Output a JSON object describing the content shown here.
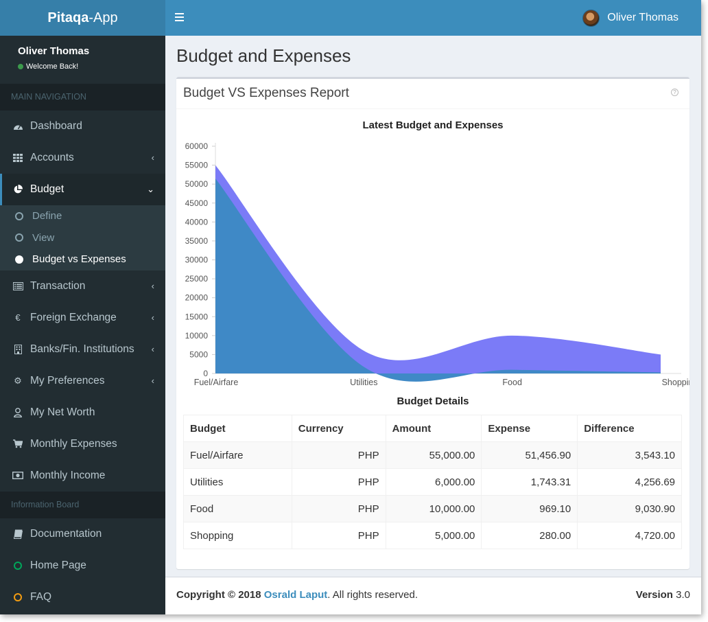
{
  "app": {
    "logo_bold": "Pitaqa",
    "logo_rest": "-App"
  },
  "header": {
    "user_name": "Oliver Thomas"
  },
  "sidebar": {
    "user_name": "Oliver Thomas",
    "status_text": "Welcome Back!",
    "main_nav_header": "MAIN NAVIGATION",
    "items": [
      {
        "label": "Dashboard"
      },
      {
        "label": "Accounts"
      },
      {
        "label": "Budget"
      },
      {
        "label": "Transaction"
      },
      {
        "label": "Foreign Exchange"
      },
      {
        "label": "Banks/Fin. Institutions"
      },
      {
        "label": "My Preferences"
      },
      {
        "label": "My Net Worth"
      },
      {
        "label": "Monthly Expenses"
      },
      {
        "label": "Monthly Income"
      }
    ],
    "budget_sub": [
      {
        "label": "Define"
      },
      {
        "label": "View"
      },
      {
        "label": "Budget vs Expenses"
      }
    ],
    "info_header": "Information Board",
    "info_items": [
      {
        "label": "Documentation"
      },
      {
        "label": "Home Page",
        "color": "#00a65a"
      },
      {
        "label": "FAQ",
        "color": "#f39c12"
      }
    ]
  },
  "page": {
    "title": "Budget and Expenses"
  },
  "report": {
    "box_title": "Budget VS Expenses Report",
    "table_title": "Budget Details",
    "columns": [
      "Budget",
      "Currency",
      "Amount",
      "Expense",
      "Difference"
    ],
    "rows": [
      [
        "Fuel/Airfare",
        "PHP",
        "55,000.00",
        "51,456.90",
        "3,543.10"
      ],
      [
        "Utilities",
        "PHP",
        "6,000.00",
        "1,743.31",
        "4,256.69"
      ],
      [
        "Food",
        "PHP",
        "10,000.00",
        "969.10",
        "9,030.90"
      ],
      [
        "Shopping",
        "PHP",
        "5,000.00",
        "280.00",
        "4,720.00"
      ]
    ]
  },
  "chart_data": {
    "type": "area",
    "title": "Latest Budget and Expenses",
    "categories": [
      "Fuel/Airfare",
      "Utilities",
      "Food",
      "Shopping"
    ],
    "ylim": [
      0,
      60000
    ],
    "yticks": [
      0,
      5000,
      10000,
      15000,
      20000,
      25000,
      30000,
      35000,
      40000,
      45000,
      50000,
      55000,
      60000
    ],
    "series": [
      {
        "values": [
          55000,
          6000,
          10000,
          5000
        ],
        "color": "#7b7bf7"
      },
      {
        "values": [
          51456.9,
          1743.31,
          969.1,
          280
        ],
        "color": "#3f89c6"
      }
    ],
    "legend": "none",
    "grid": false
  },
  "footer": {
    "copyright_prefix": "Copyright © 2018",
    "author": "Osrald Laput",
    "rights": ". All rights reserved.",
    "version_label": "Version",
    "version": "3.0"
  }
}
